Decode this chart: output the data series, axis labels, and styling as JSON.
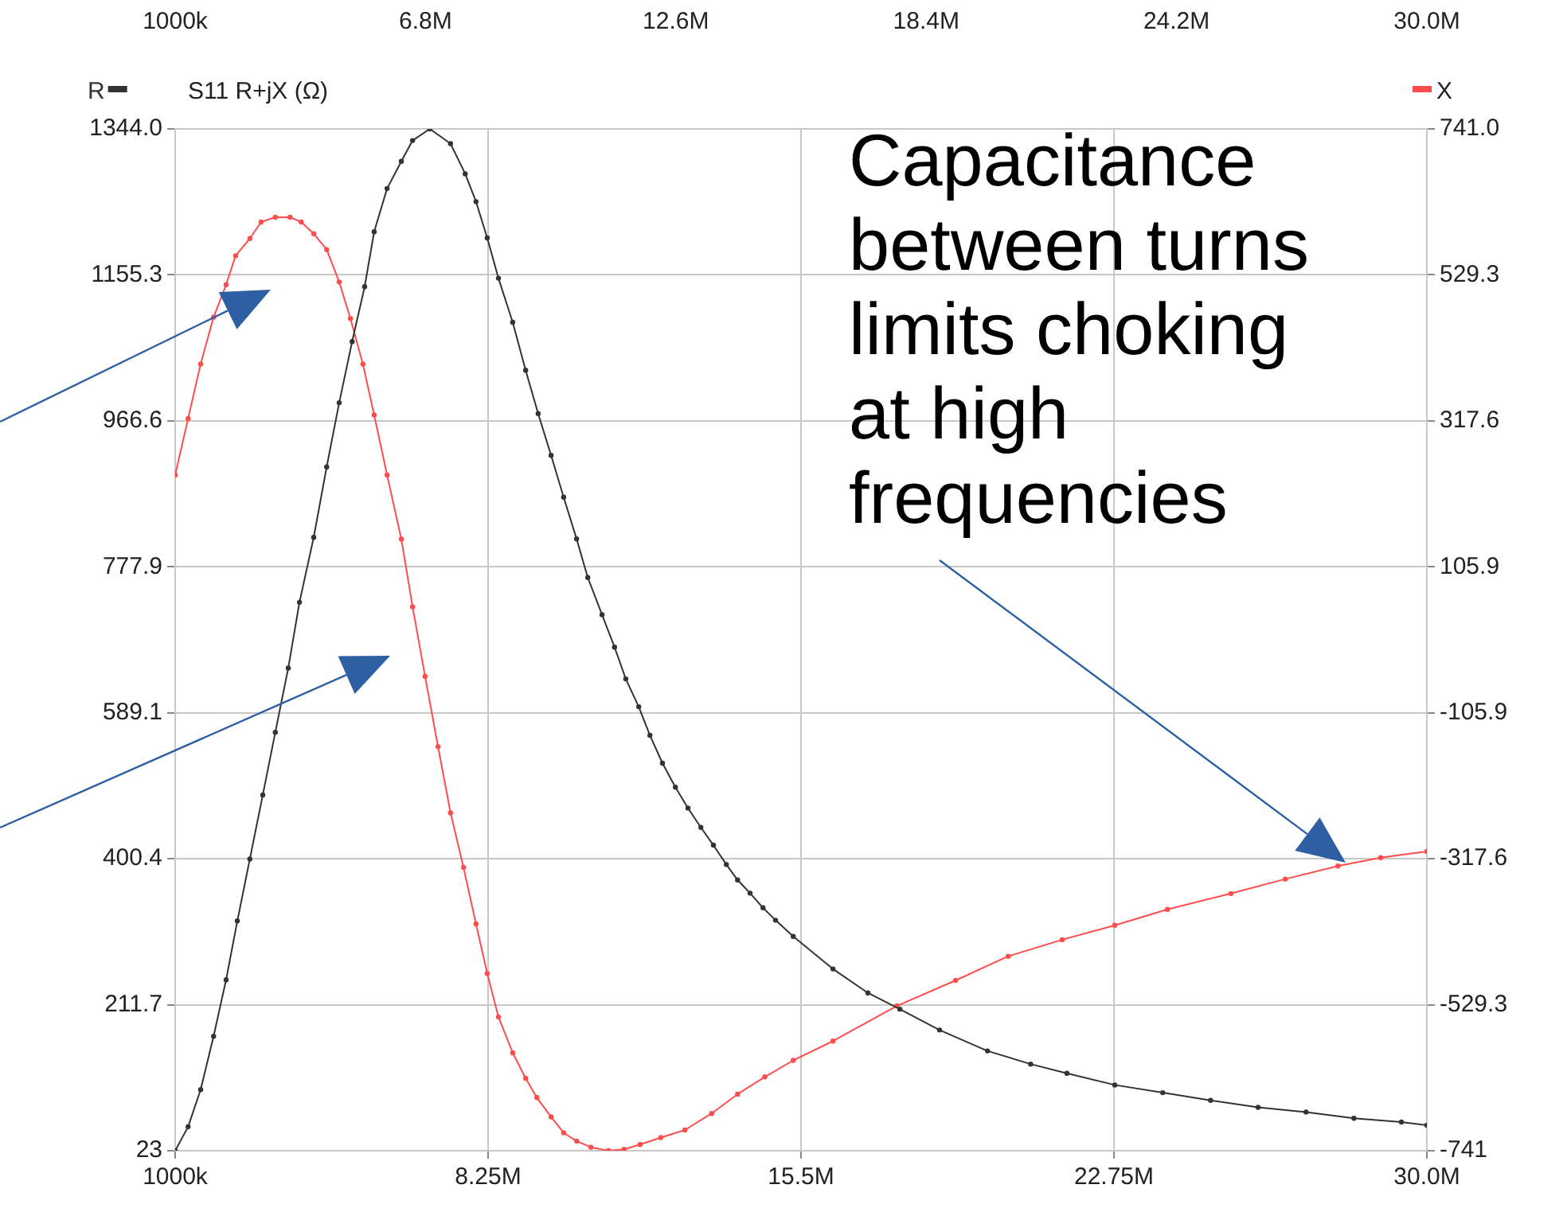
{
  "chart_data": {
    "type": "line",
    "title": "S11 R+jX (Ω)",
    "legend": "top",
    "marker": "circle",
    "line_style": "solid",
    "grid": true,
    "xlim": [
      1000000,
      30000000
    ],
    "xticks": [
      {
        "value": 1000000,
        "label": "1000k"
      },
      {
        "value": 8250000,
        "label": "8.25M"
      },
      {
        "value": 15500000,
        "label": "15.5M"
      },
      {
        "value": 22750000,
        "label": "22.75M"
      },
      {
        "value": 30000000,
        "label": "30.0M"
      }
    ],
    "x2lim": [
      1000000,
      30000000
    ],
    "x2ticks": [
      {
        "value": 1000000,
        "label": "1000k"
      },
      {
        "value": 6800000,
        "label": "6.8M"
      },
      {
        "value": 12600000,
        "label": "12.6M"
      },
      {
        "value": 18400000,
        "label": "18.4M"
      },
      {
        "value": 24200000,
        "label": "24.2M"
      },
      {
        "value": 30000000,
        "label": "30.0M"
      }
    ],
    "ylim": [
      23,
      1344
    ],
    "yticks": [
      23,
      211.7,
      400.4,
      589.1,
      777.9,
      966.6,
      1155.3,
      {
        "value": 1344,
        "label": "1344.0"
      }
    ],
    "y2lim": [
      -741,
      741
    ],
    "y2ticks": [
      -741,
      -529.3,
      -317.6,
      -105.9,
      105.9,
      317.6,
      529.3,
      {
        "value": 741,
        "label": "741.0"
      }
    ],
    "annotations": [
      "Capacitance between turns limits choking at high frequencies"
    ],
    "series": [
      {
        "name": "R",
        "color": "#333333",
        "x": [
          1000000,
          1300000,
          1590000,
          1890000,
          2180000,
          2440000,
          2730000,
          3030000,
          3320000,
          3620000,
          3880000,
          4210000,
          4510000,
          4800000,
          5100000,
          5390000,
          5610000,
          5910000,
          6240000,
          6500000,
          6900000,
          7380000,
          7720000,
          7970000,
          8230000,
          8490000,
          8820000,
          9120000,
          9410000,
          9710000,
          10000000,
          10300000,
          10560000,
          10890000,
          11180000,
          11440000,
          11740000,
          12000000,
          12290000,
          12590000,
          12880000,
          13180000,
          13470000,
          13770000,
          14030000,
          14320000,
          14620000,
          14910000,
          15320000,
          16240000,
          17050000,
          17790000,
          18710000,
          19820000,
          20820000,
          21660000,
          22770000,
          23880000,
          24990000,
          26090000,
          27200000,
          28310000,
          29410000,
          30000000
        ],
        "values": [
          23,
          54,
          102,
          171,
          244,
          320,
          400,
          483,
          564,
          647,
          732,
          816,
          907,
          990,
          1069,
          1140,
          1211,
          1267,
          1302,
          1329,
          1344,
          1325,
          1286,
          1250,
          1203,
          1151,
          1094,
          1032,
          976,
          922,
          868,
          814,
          764,
          716,
          674,
          633,
          597,
          560,
          524,
          493,
          466,
          441,
          418,
          393,
          373,
          356,
          337,
          321,
          300,
          258,
          227,
          206,
          179,
          152,
          135,
          123,
          108,
          98,
          88,
          79,
          73,
          65,
          60,
          56
        ]
      },
      {
        "name": "X",
        "color": "#ff4d4d",
        "axis": "y2",
        "x": [
          1000000,
          1300000,
          1590000,
          1890000,
          2180000,
          2400000,
          2730000,
          2990000,
          3320000,
          3660000,
          3920000,
          4210000,
          4510000,
          4800000,
          5060000,
          5350000,
          5610000,
          5910000,
          6240000,
          6500000,
          6790000,
          7090000,
          7380000,
          7680000,
          7970000,
          8230000,
          8490000,
          8820000,
          9120000,
          9380000,
          9710000,
          10000000,
          10300000,
          10630000,
          11040000,
          11400000,
          11770000,
          12250000,
          12810000,
          13430000,
          14030000,
          14660000,
          15320000,
          16240000,
          17720000,
          19080000,
          20300000,
          21550000,
          22770000,
          23990000,
          25460000,
          26720000,
          27940000,
          28930000,
          30000000
        ],
        "values": [
          239,
          321,
          400,
          468,
          515,
          557,
          582,
          606,
          613,
          613,
          606,
          589,
          566,
          519,
          466,
          400,
          326,
          239,
          146,
          48,
          -53,
          -155,
          -251,
          -330,
          -412,
          -484,
          -547,
          -599,
          -636,
          -664,
          -692,
          -715,
          -727,
          -736,
          -741,
          -739,
          -732,
          -722,
          -711,
          -687,
          -659,
          -634,
          -610,
          -582,
          -531,
          -494,
          -459,
          -435,
          -414,
          -391,
          -368,
          -347,
          -328,
          -316,
          -307
        ]
      }
    ]
  }
}
